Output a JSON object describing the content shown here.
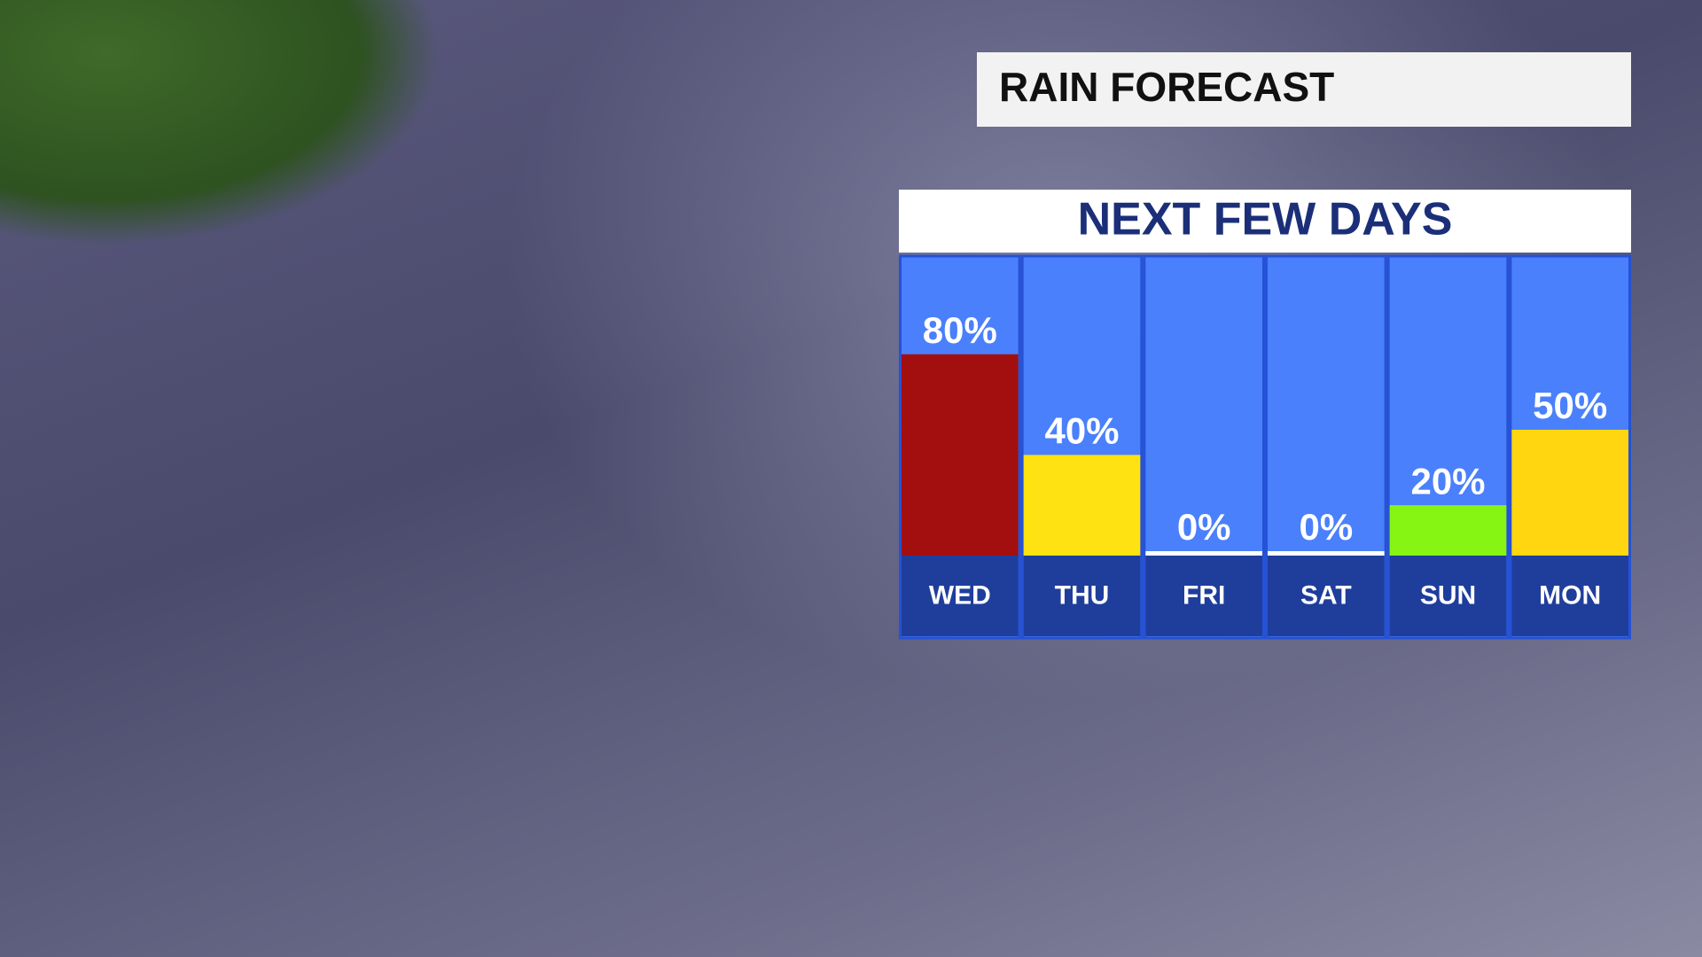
{
  "chart_data": {
    "type": "bar",
    "title": "RAIN FORECAST",
    "subtitle": "NEXT FEW DAYS",
    "categories": [
      "WED",
      "THU",
      "FRI",
      "SAT",
      "SUN",
      "MON"
    ],
    "values": [
      80,
      40,
      0,
      0,
      20,
      50
    ],
    "value_labels": [
      "80%",
      "40%",
      "0%",
      "0%",
      "20%",
      "50%"
    ],
    "colors": [
      "#a30f0f",
      "#ffe212",
      "#ffffff",
      "#ffffff",
      "#86f513",
      "#ffd60f"
    ]
  }
}
